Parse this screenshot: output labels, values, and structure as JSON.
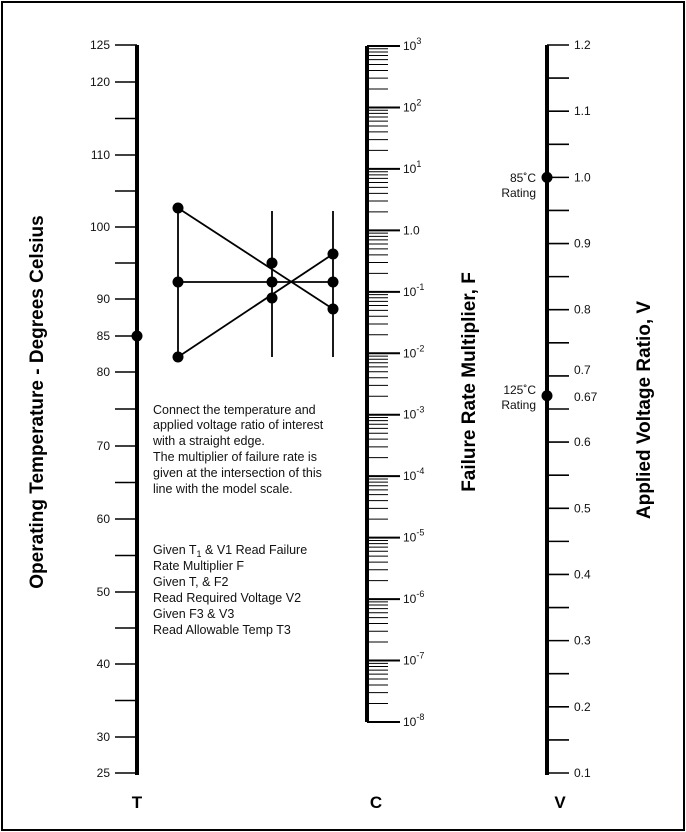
{
  "T_axis": {
    "title": "Operating Temperature - Degrees Celsius",
    "letter": "T",
    "labels": [
      {
        "v": 125,
        "text": "125"
      },
      {
        "v": 120,
        "text": "120"
      },
      {
        "v": 110,
        "text": "110"
      },
      {
        "v": 100,
        "text": "100"
      },
      {
        "v": 90,
        "text": "90"
      },
      {
        "v": 85,
        "text": "85"
      },
      {
        "v": 80,
        "text": "80"
      },
      {
        "v": 70,
        "text": "70"
      },
      {
        "v": 60,
        "text": "60"
      },
      {
        "v": 50,
        "text": "50"
      },
      {
        "v": 40,
        "text": "40"
      },
      {
        "v": 30,
        "text": "30"
      },
      {
        "v": 25,
        "text": "25"
      }
    ],
    "marked_point": 85
  },
  "C_axis": {
    "title": "Failure Rate Multiplier, F",
    "letter": "C",
    "labels": [
      {
        "exp": 3,
        "base": "10",
        "sup": "3"
      },
      {
        "exp": 2,
        "base": "10",
        "sup": "2"
      },
      {
        "exp": 1,
        "base": "10",
        "sup": "1"
      },
      {
        "exp": 0,
        "base": "1.0",
        "sup": ""
      },
      {
        "exp": -1,
        "base": "10",
        "sup": "-1"
      },
      {
        "exp": -2,
        "base": "10",
        "sup": "-2"
      },
      {
        "exp": -3,
        "base": "10",
        "sup": "-3"
      },
      {
        "exp": -4,
        "base": "10",
        "sup": "-4"
      },
      {
        "exp": -5,
        "base": "10",
        "sup": "-5"
      },
      {
        "exp": -6,
        "base": "10",
        "sup": "-6"
      },
      {
        "exp": -7,
        "base": "10",
        "sup": "-7"
      },
      {
        "exp": -8,
        "base": "10",
        "sup": "-8"
      }
    ]
  },
  "V_axis": {
    "title": "Applied Voltage Ratio, V",
    "letter": "V",
    "labels": [
      {
        "v": 1.2,
        "text": "1.2"
      },
      {
        "v": 1.1,
        "text": "1.1"
      },
      {
        "v": 1.0,
        "text": "1.0"
      },
      {
        "v": 0.9,
        "text": "0.9"
      },
      {
        "v": 0.8,
        "text": "0.8"
      },
      {
        "v": 0.7,
        "text": "0.7"
      },
      {
        "v": 0.67,
        "text": "0.67"
      },
      {
        "v": 0.6,
        "text": "0.6"
      },
      {
        "v": 0.5,
        "text": "0.5"
      },
      {
        "v": 0.4,
        "text": "0.4"
      },
      {
        "v": 0.3,
        "text": "0.3"
      },
      {
        "v": 0.2,
        "text": "0.2"
      },
      {
        "v": 0.1,
        "text": "0.1"
      }
    ],
    "marked_points": [
      1.0,
      0.67
    ],
    "rating_85": {
      "line1": "85˚C",
      "line2": "Rating"
    },
    "rating_125": {
      "line1": "125˚C",
      "line2": "Rating"
    }
  },
  "instructions": {
    "paragraph": [
      "Connect the temperature and",
      "applied voltage ratio of interest",
      "with a straight edge.",
      "The multiplier of failure rate is",
      "given at the intersection of this",
      "line with the model scale."
    ],
    "given_line_1_pre": "Given T",
    "given_line_1_sub": "1",
    "given_line_1_post": " & V1 Read Failure",
    "steps": [
      "Rate Multiplier F",
      "Given T, & F2",
      "Read Required Voltage V2",
      "Given F3 & V3",
      "Read Allowable Temp T3"
    ]
  }
}
